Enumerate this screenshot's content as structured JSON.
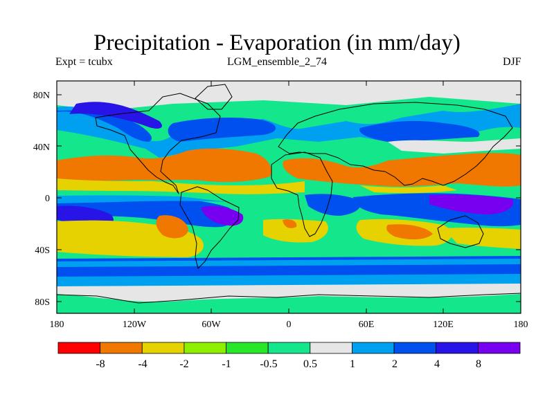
{
  "map": {
    "title": "Precipitation - Evaporation (in mm/day)",
    "experiment_label": "Expt = tcubx",
    "run_label": "LGM_ensemble_2_74",
    "season_label": "DJF",
    "lat_ticks": [
      "80N",
      "40N",
      "0",
      "40S",
      "80S"
    ],
    "lon_ticks": [
      "180",
      "120W",
      "60W",
      "0",
      "60E",
      "120E",
      "180"
    ],
    "frame_color": "#000000",
    "coastline_color": "#000000"
  },
  "legend": {
    "colors": [
      "#ff0000",
      "#f07800",
      "#e6d200",
      "#8cf000",
      "#28e628",
      "#14e68c",
      "#e6e6e6",
      "#00a0f0",
      "#0050f0",
      "#2814e6",
      "#7800f0"
    ],
    "labels": [
      "-8",
      "-4",
      "-2",
      "-1",
      "-0.5",
      "0.5",
      "1",
      "2",
      "4",
      "8"
    ]
  },
  "palette": {
    "strong_dry": "#f07800",
    "dry": "#e6d200",
    "moderate_dry": "#8cf000",
    "weak_dry": "#28e628",
    "near_zero": "#14e68c",
    "weak_wet": "#e6e6e6",
    "wet": "#00a0f0",
    "very_wet": "#0050f0",
    "extreme_wet": "#2814e6",
    "max_wet": "#7800f0"
  }
}
